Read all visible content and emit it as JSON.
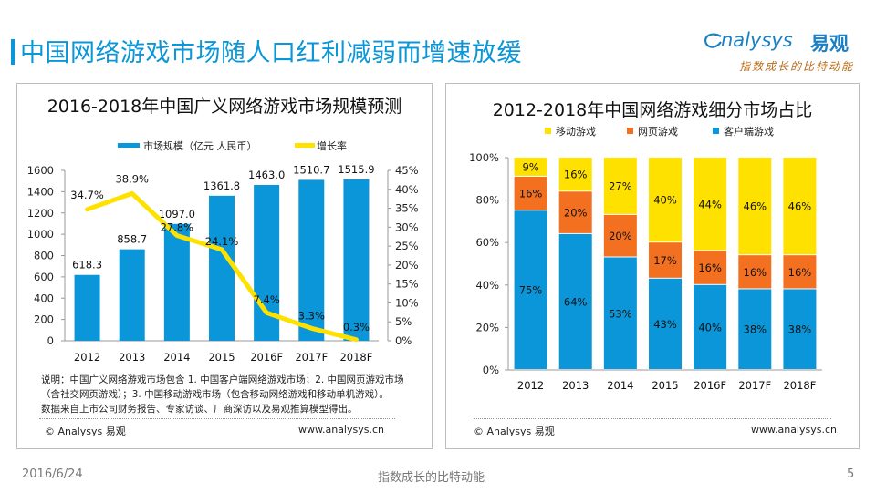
{
  "header": {
    "title": "中国网络游戏市场随人口红利减弱而增速放缓",
    "logo_text": "nalysys",
    "logo_cn": "易观",
    "logo_tagline": "指数成长的比特动能"
  },
  "colors": {
    "accent": "#0a96d8",
    "bar_blue": "#0a96d8",
    "line_yellow": "#ffe100",
    "orange": "#f37021",
    "yellow": "#ffe100"
  },
  "left_panel": {
    "note_lines": [
      "说明：中国广义网络游戏市场包含 1. 中国客户端网络游戏市场；2. 中国网页游戏市场",
      "（含社交网页游戏）；3. 中国移动游戏市场（包含移动网络游戏和移动单机游戏）。",
      "数据来自上市公司财务报告、专家访谈、厂商深访以及易观推算模型得出。"
    ],
    "copyright": "© Analysys 易观",
    "website": "www.analysys.cn"
  },
  "right_panel": {
    "copyright": "© Analysys 易观",
    "website": "www.analysys.cn"
  },
  "footer": {
    "date": "2016/6/24",
    "tagline": "指数成长的比特动能",
    "page_number": "5"
  },
  "chart_data": [
    {
      "type": "bar",
      "title": "2016-2018年中国广义网络游戏市场规模预测",
      "categories": [
        "2012",
        "2013",
        "2014",
        "2015",
        "2016F",
        "2017F",
        "2018F"
      ],
      "series": [
        {
          "name": "市场规模（亿元 人民币）",
          "type": "bar",
          "axis": "left",
          "values": [
            618.3,
            858.7,
            1097.0,
            1361.8,
            1463.0,
            1510.7,
            1515.9
          ],
          "labels": [
            "618.3",
            "858.7",
            "1097.0",
            "1361.8",
            "1463.0",
            "1510.7",
            "1515.9"
          ]
        },
        {
          "name": "增长率",
          "type": "line",
          "axis": "right",
          "values": [
            34.7,
            38.9,
            27.8,
            24.1,
            7.4,
            3.3,
            0.3
          ],
          "labels": [
            "34.7%",
            "38.9%",
            "27.8%",
            "24.1%",
            "7.4%",
            "3.3%",
            "0.3%"
          ]
        }
      ],
      "y_left": {
        "min": 0,
        "max": 1600,
        "ticks": [
          0,
          200,
          400,
          600,
          800,
          1000,
          1200,
          1400,
          1600
        ]
      },
      "y_right": {
        "min": 0,
        "max": 45,
        "ticks": [
          "0%",
          "5%",
          "10%",
          "15%",
          "20%",
          "25%",
          "30%",
          "35%",
          "40%",
          "45%"
        ]
      },
      "legend": "top",
      "grid": false
    },
    {
      "type": "bar",
      "stacked": true,
      "title": "2012-2018年中国网络游戏细分市场占比",
      "categories": [
        "2012",
        "2013",
        "2014",
        "2015",
        "2016F",
        "2017F",
        "2018F"
      ],
      "series": [
        {
          "name": "客户端游戏",
          "values": [
            75,
            64,
            53,
            43,
            40,
            38,
            38
          ]
        },
        {
          "name": "网页游戏",
          "values": [
            16,
            20,
            20,
            17,
            16,
            16,
            16
          ]
        },
        {
          "name": "移动游戏",
          "values": [
            9,
            16,
            27,
            40,
            44,
            46,
            46
          ]
        }
      ],
      "legend_order": [
        "移动游戏",
        "网页游戏",
        "客户端游戏"
      ],
      "y": {
        "min": 0,
        "max": 100,
        "ticks": [
          "0%",
          "20%",
          "40%",
          "60%",
          "80%",
          "100%"
        ]
      },
      "legend": "top",
      "grid": false
    }
  ]
}
